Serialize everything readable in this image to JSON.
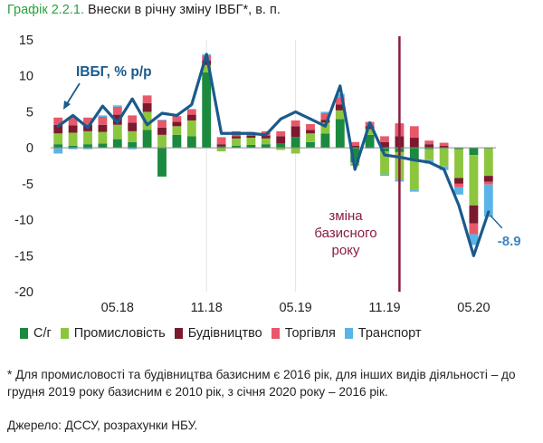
{
  "header": {
    "number": "Графік 2.2.1.",
    "text": "Внески в річну зміну ІВБГ*, в. п."
  },
  "chart_data": {
    "type": "bar",
    "title": "Графік 2.2.1. Внески в річну зміну ІВБГ*, в. п.",
    "ylim": [
      -20,
      15
    ],
    "yticks": [
      "15",
      "10",
      "5",
      "0",
      "-5",
      "-10",
      "-15",
      "-20"
    ],
    "yticks_values": [
      15,
      10,
      5,
      0,
      -5,
      -10,
      -15,
      -20
    ],
    "x_tick_labels": [
      {
        "label": "05.18",
        "index": 4
      },
      {
        "label": "11.18",
        "index": 10
      },
      {
        "label": "05.19",
        "index": 16
      },
      {
        "label": "11.19",
        "index": 22
      },
      {
        "label": "05.20",
        "index": 28
      }
    ],
    "vertical_line_index": 23.5,
    "line_label": "ІВБГ, % р/р",
    "annotation": [
      "зміна",
      "базисного",
      "року"
    ],
    "last_value_label": "-8.9",
    "stacked": true,
    "series": [
      {
        "name": "С/г",
        "color": "#1b8a3e",
        "values": [
          0.5,
          0.3,
          0.5,
          0.6,
          1.2,
          0.8,
          2.5,
          -4.0,
          1.8,
          1.6,
          10.5,
          0.2,
          0.3,
          0.4,
          0.5,
          0.6,
          1.5,
          0.8,
          2.0,
          4.0,
          -2.0,
          1.8,
          -0.5,
          -0.6,
          -1.8,
          -0.2,
          -0.1,
          -0.2,
          -1.0,
          -0.1
        ]
      },
      {
        "name": "Промисловість",
        "color": "#8cc63f",
        "values": [
          1.5,
          1.8,
          1.8,
          1.6,
          2.0,
          1.5,
          2.5,
          1.8,
          1.2,
          2.2,
          1.0,
          -0.5,
          1.0,
          1.0,
          0.8,
          -0.3,
          -0.8,
          1.2,
          1.5,
          1.2,
          -0.5,
          0.8,
          -3.2,
          -3.8,
          -4.0,
          -1.5,
          -2.5,
          -4.0,
          -7.0,
          -3.8
        ]
      },
      {
        "name": "Будівництво",
        "color": "#7b1a2e",
        "values": [
          1.2,
          1.0,
          0.9,
          1.0,
          1.4,
          1.2,
          1.2,
          1.0,
          0.6,
          0.8,
          0.6,
          0.3,
          0.3,
          0.3,
          0.4,
          1.0,
          1.5,
          0.5,
          0.4,
          0.8,
          0.3,
          0.4,
          0.8,
          1.6,
          1.4,
          0.5,
          0.3,
          -0.8,
          -2.5,
          -0.8
        ]
      },
      {
        "name": "Торгівля",
        "color": "#e8586a",
        "values": [
          1.0,
          1.2,
          1.0,
          1.1,
          1.1,
          1.0,
          1.0,
          1.0,
          0.8,
          0.7,
          0.7,
          0.9,
          0.7,
          0.5,
          0.6,
          0.7,
          0.8,
          0.8,
          0.9,
          1.0,
          0.5,
          0.6,
          0.8,
          1.8,
          1.6,
          0.5,
          0.4,
          -0.5,
          -1.5,
          -0.4
        ]
      },
      {
        "name": "Транспорт",
        "color": "#5ab4e8",
        "values": [
          -0.8,
          -0.2,
          -0.2,
          0.2,
          0.2,
          -0.2,
          0.1,
          0.1,
          0.0,
          0.1,
          0.2,
          0.1,
          0.0,
          0.0,
          0.0,
          0.0,
          0.0,
          0.0,
          0.2,
          0.5,
          0.0,
          -0.1,
          -0.2,
          -0.3,
          -0.3,
          -0.5,
          -0.5,
          -1.0,
          -1.5,
          -4.5
        ]
      },
      {
        "name": "ІВБГ, % р/р",
        "color": "#1a5a8c",
        "kind": "line",
        "values": [
          3.0,
          4.5,
          2.8,
          5.8,
          3.5,
          6.8,
          3.2,
          4.8,
          4.5,
          6.0,
          13.0,
          2.0,
          2.0,
          2.0,
          1.8,
          4.0,
          5.0,
          4.0,
          3.0,
          8.6,
          -3.0,
          3.5,
          -1.0,
          -1.3,
          -1.7,
          -2.0,
          -3.0,
          -8.0,
          -15.0,
          -8.9
        ]
      }
    ]
  },
  "legend": [
    {
      "name": "С/г",
      "color": "#1b8a3e"
    },
    {
      "name": "Промисловість",
      "color": "#8cc63f"
    },
    {
      "name": "Будівництво",
      "color": "#7b1a2e"
    },
    {
      "name": "Торгівля",
      "color": "#e8586a"
    },
    {
      "name": "Транспорт",
      "color": "#5ab4e8"
    }
  ],
  "footnote": "* Для промисловості та будівництва базисним є 2016 рік, для інших видів діяльності – до грудня 2019 року базисним є 2010 рік, з січня 2020 року – 2016 рік.",
  "source": "Джерело: ДССУ, розрахунки НБУ."
}
